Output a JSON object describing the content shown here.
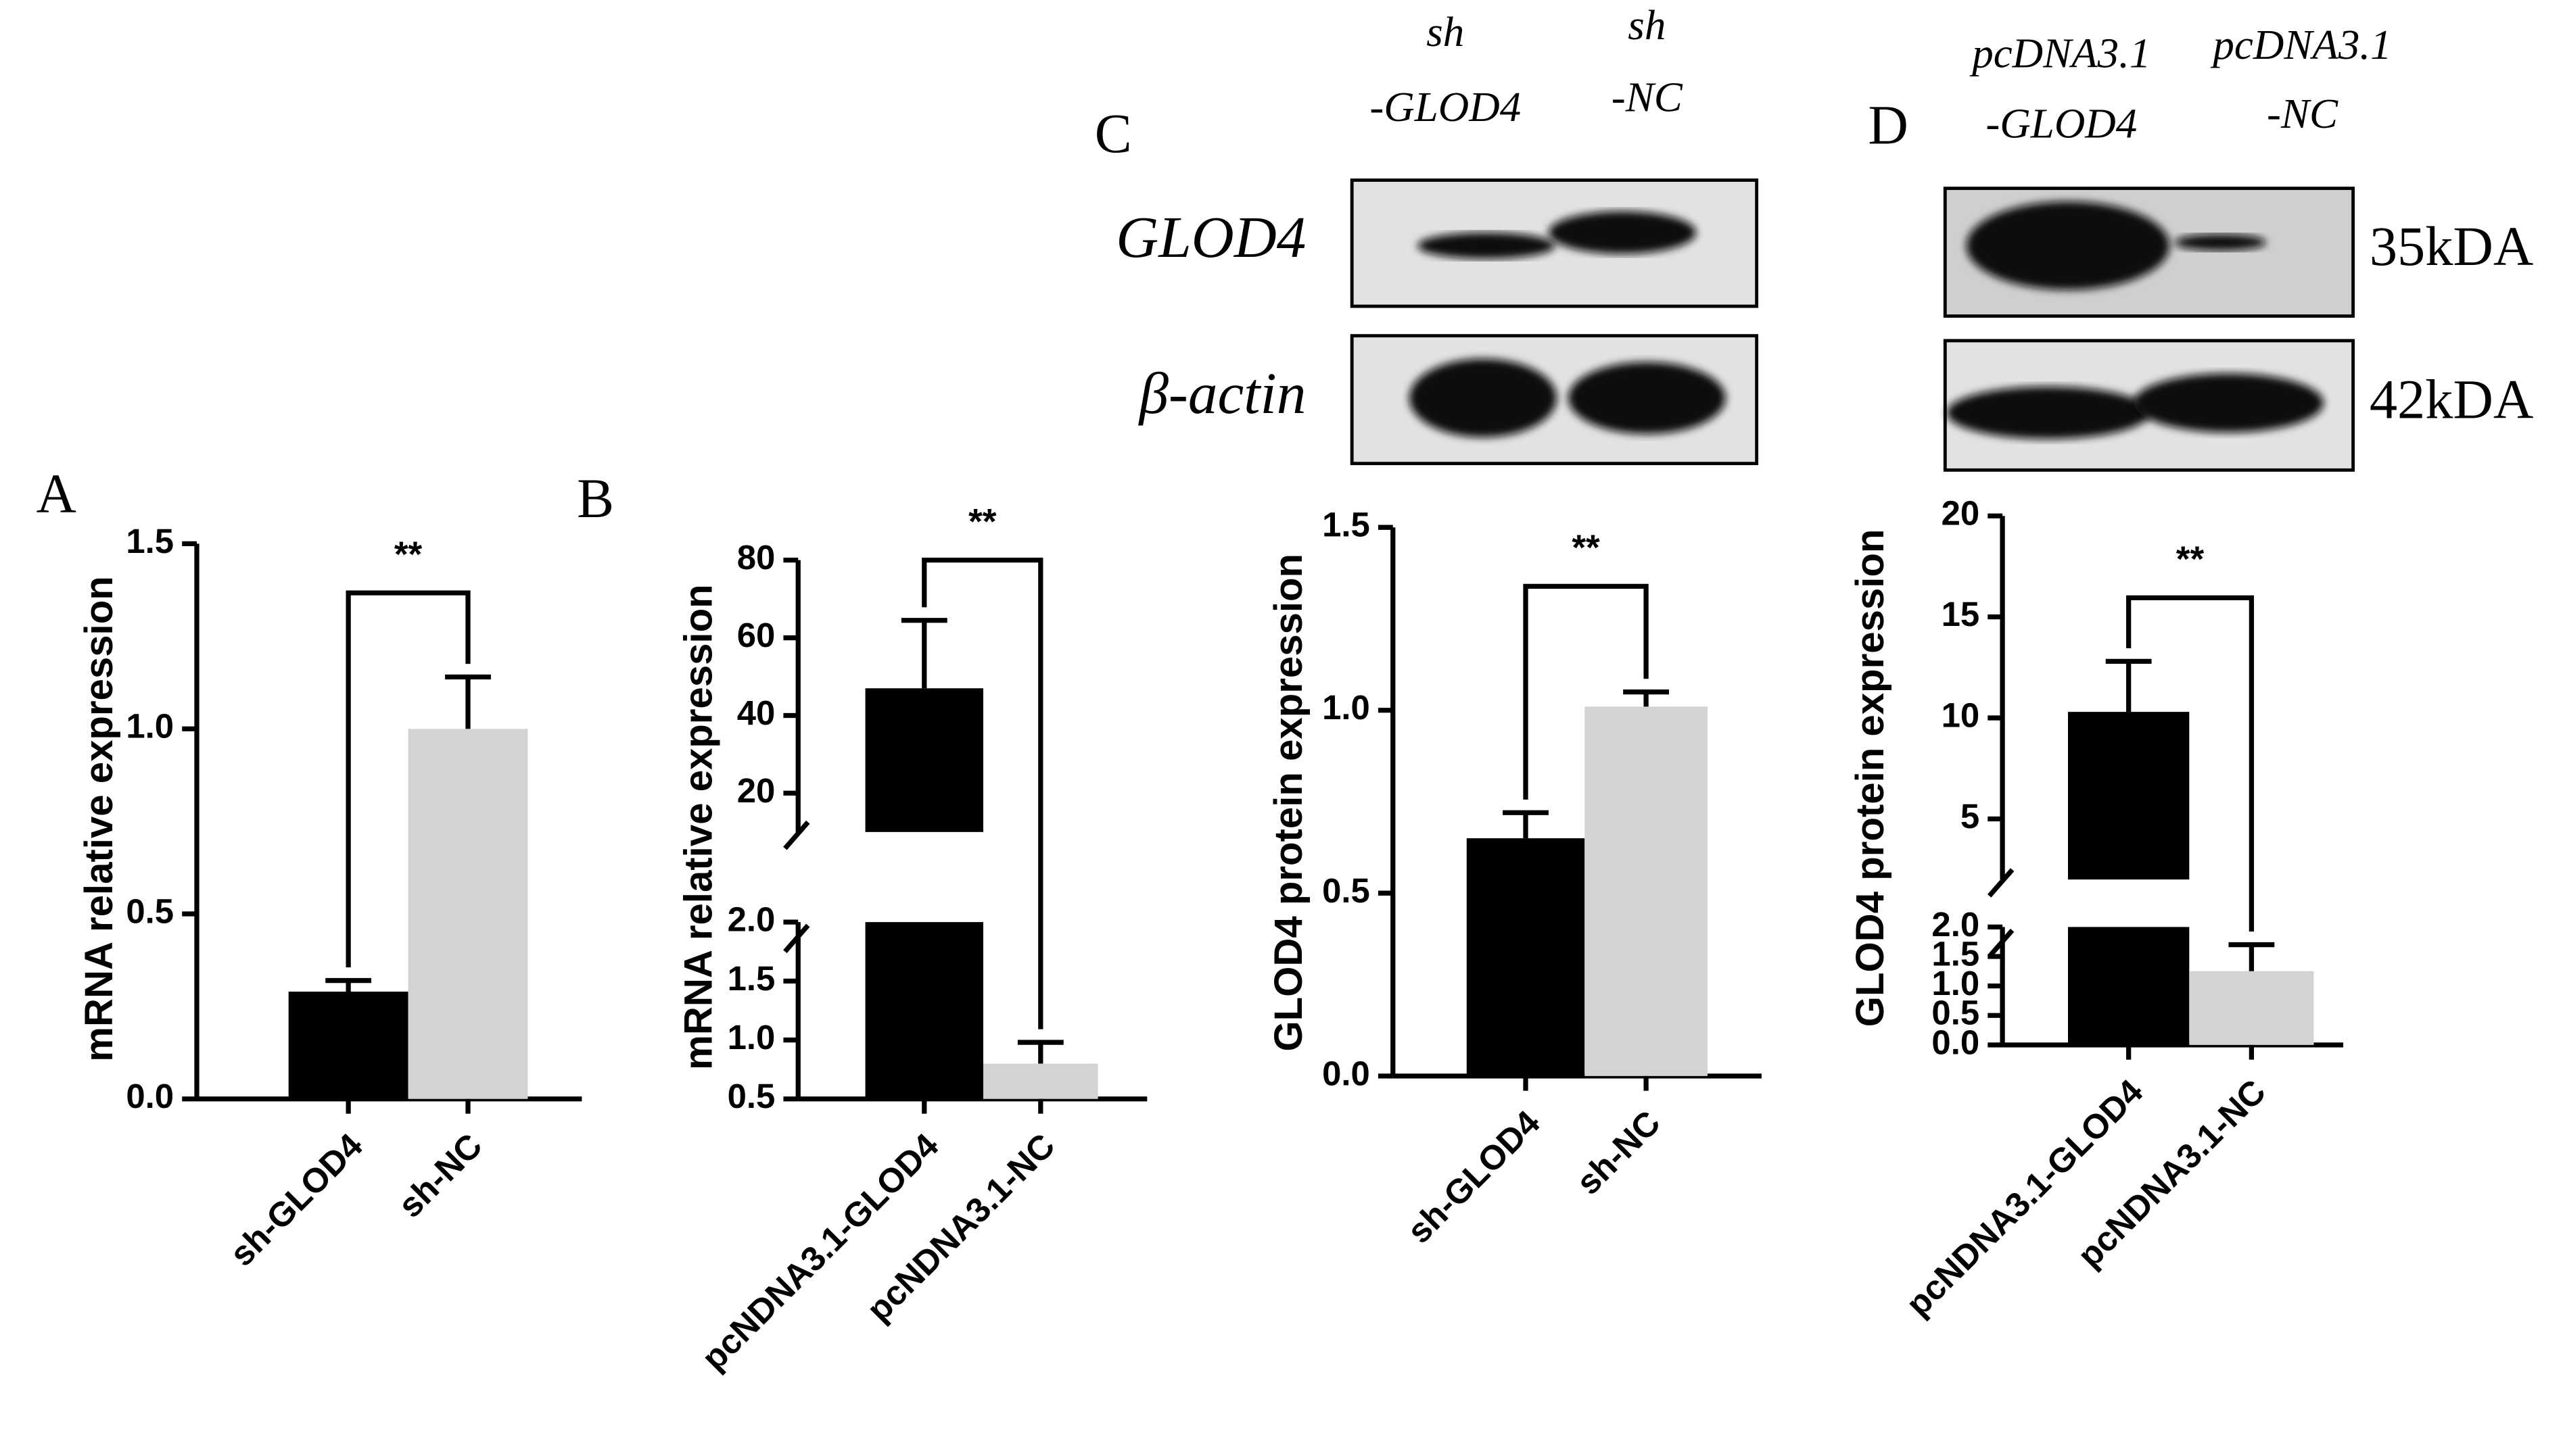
{
  "chart_data": [
    {
      "type": "bar",
      "panel": "A",
      "y_label": "mRNA relative expression",
      "categories": [
        "sh-GLOD4",
        "sh-NC"
      ],
      "values": [
        0.29,
        1.0
      ],
      "errors": [
        0.03,
        0.14
      ],
      "colors": [
        "#000000",
        "#d3d3d3"
      ],
      "ylim": [
        0,
        1.5
      ],
      "yticks": [
        {
          "value": 0,
          "label": "0.0"
        },
        0.5,
        {
          "value": 1,
          "label": "1.0"
        },
        1.5
      ],
      "significance": "**"
    },
    {
      "type": "bar",
      "panel": "B",
      "y_label": "mRNA relative expression",
      "categories": [
        "pcNDNA3.1-GLOD4",
        "pcNDNA3.1-NC"
      ],
      "values": [
        47,
        0.8
      ],
      "errors": [
        17.5,
        0.18
      ],
      "colors": [
        "#000000",
        "#d3d3d3"
      ],
      "ylim": [
        0.5,
        80
      ],
      "ybreak": [
        2,
        10
      ],
      "yticks": [
        0.5,
        {
          "value": 1,
          "label": "1.0"
        },
        1.5,
        {
          "value": 2,
          "label": "2.0"
        },
        20,
        40,
        60,
        80
      ],
      "significance": "**"
    },
    {
      "type": "bar",
      "panel": "C",
      "y_label": "GLOD4 protein expression",
      "categories": [
        "sh-GLOD4",
        "sh-NC"
      ],
      "values": [
        0.65,
        1.01
      ],
      "errors": [
        0.07,
        0.04
      ],
      "colors": [
        "#000000",
        "#d3d3d3"
      ],
      "ylim": [
        0,
        1.5
      ],
      "yticks": [
        {
          "value": 0,
          "label": "0.0"
        },
        0.5,
        {
          "value": 1,
          "label": "1.0"
        },
        1.5
      ],
      "significance": "**",
      "blot": {
        "lanes": [
          [
            "sh",
            "-GLOD4"
          ],
          [
            "sh",
            "-NC"
          ]
        ],
        "rows": [
          "GLOD4",
          "β-actin"
        ]
      }
    },
    {
      "type": "bar",
      "panel": "D",
      "y_label": "GLOD4 protein expression",
      "categories": [
        "pcNDNA3.1-GLOD4",
        "pcNDNA3.1-NC"
      ],
      "values": [
        10.3,
        1.25
      ],
      "errors": [
        2.5,
        0.45
      ],
      "colors": [
        "#000000",
        "#d3d3d3"
      ],
      "ylim": [
        0,
        20
      ],
      "ybreak": [
        2,
        2
      ],
      "yticks": [
        {
          "value": 0,
          "label": "0.0"
        },
        0.5,
        {
          "value": 1,
          "label": "1.0"
        },
        1.5,
        {
          "value": 2,
          "label": "2.0"
        },
        5,
        10,
        15,
        20
      ],
      "significance": "**",
      "blot": {
        "lanes": [
          [
            "pcDNA3.1",
            "-GLOD4"
          ],
          [
            "pcDNA3.1",
            "-NC"
          ]
        ],
        "sizes": [
          "35kDA",
          "42kDA"
        ]
      }
    }
  ]
}
